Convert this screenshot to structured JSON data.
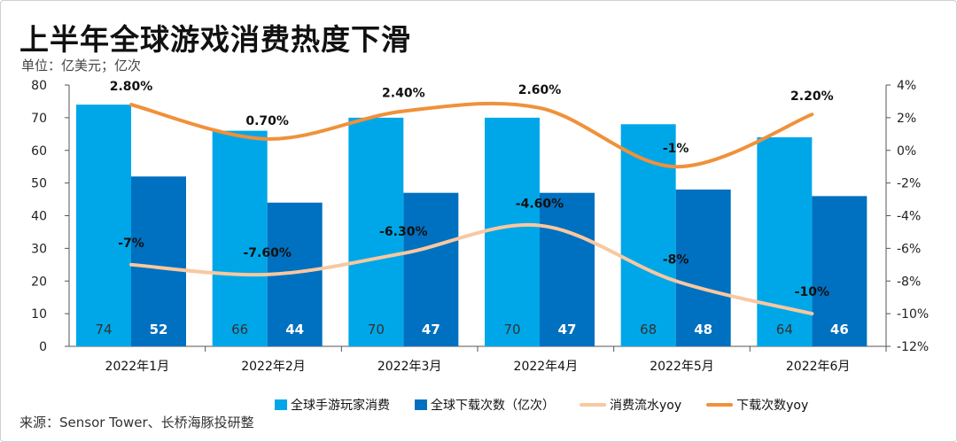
{
  "header": {
    "title": "上半年全球游戏消费热度下滑",
    "unit": "单位：亿美元；亿次"
  },
  "footer": {
    "source": "来源：Sensor Tower、长桥海豚投研整"
  },
  "colors": {
    "consume_bar": "#00A7E8",
    "download_bar": "#0070C0",
    "consume_yoy": "#F8C8A0",
    "download_yoy": "#F0913A"
  },
  "chart_data": {
    "type": "bar",
    "categories": [
      "2022年1月",
      "2022年2月",
      "2022年3月",
      "2022年4月",
      "2022年5月",
      "2022年6月"
    ],
    "series": [
      {
        "name": "全球手游玩家消费",
        "type": "bar",
        "axis": "left",
        "values": [
          74,
          66,
          70,
          70,
          68,
          64
        ]
      },
      {
        "name": "全球下载次数（亿次）",
        "type": "bar",
        "axis": "left",
        "values": [
          52,
          44,
          47,
          47,
          48,
          46
        ]
      },
      {
        "name": "消费流水yoy",
        "type": "line",
        "axis": "right",
        "values": [
          -7,
          -7.6,
          -6.3,
          -4.6,
          -8,
          -10
        ],
        "labels": [
          "-7%",
          "-7.60%",
          "-6.30%",
          "-4.60%",
          "-8%",
          "-10%"
        ]
      },
      {
        "name": "下载次数yoy",
        "type": "line",
        "axis": "right",
        "values": [
          2.8,
          0.7,
          2.4,
          2.6,
          -1,
          2.2
        ],
        "labels": [
          "2.80%",
          "0.70%",
          "2.40%",
          "2.60%",
          "-1%",
          "2.20%"
        ]
      }
    ],
    "y_left": {
      "min": 0,
      "max": 80,
      "ticks": [
        "0",
        "10",
        "20",
        "30",
        "40",
        "50",
        "60",
        "70",
        "80"
      ]
    },
    "y_right": {
      "min": -12,
      "max": 4,
      "ticks": [
        "-12%",
        "-10%",
        "-8%",
        "-6%",
        "-4%",
        "-2%",
        "0%",
        "2%",
        "4%"
      ]
    },
    "legend_position": "bottom",
    "grid": false
  }
}
